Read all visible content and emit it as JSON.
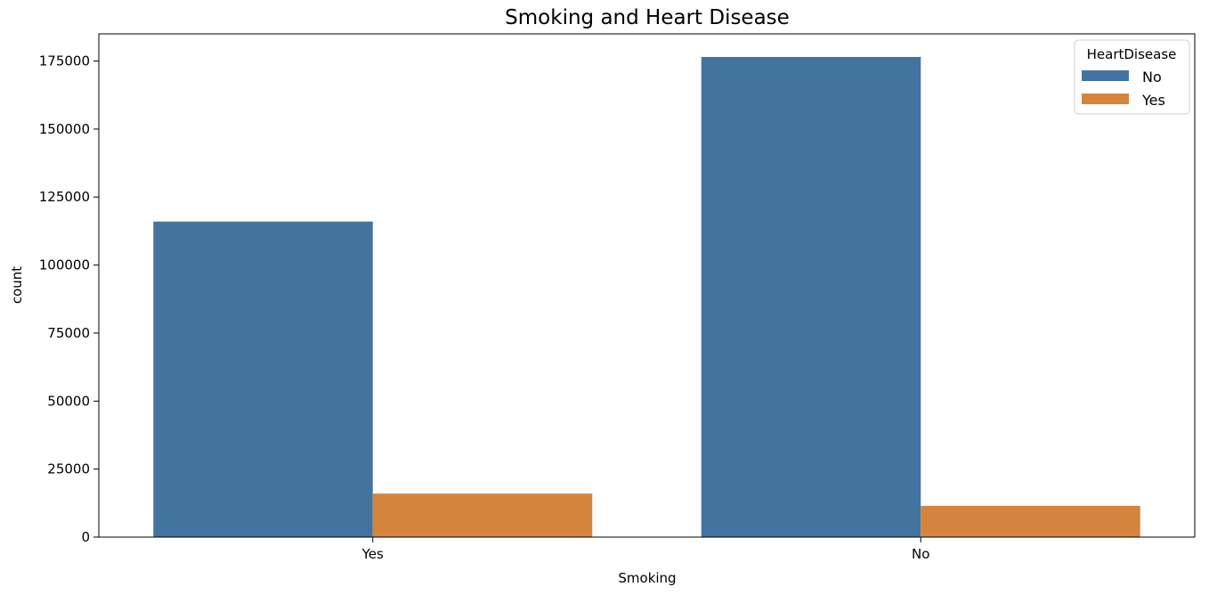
{
  "chart_data": {
    "type": "bar",
    "title": "Smoking and Heart Disease",
    "xlabel": "Smoking",
    "ylabel": "count",
    "categories": [
      "Yes",
      "No"
    ],
    "series": [
      {
        "name": "No",
        "color": "#4374a0",
        "values": [
          116000,
          176500
        ]
      },
      {
        "name": "Yes",
        "color": "#d5843e",
        "values": [
          16000,
          11500
        ]
      }
    ],
    "ylim": [
      0,
      185000
    ],
    "yticks": [
      0,
      25000,
      50000,
      75000,
      100000,
      125000,
      150000,
      175000
    ],
    "grid": false,
    "legend": {
      "title": "HeartDisease",
      "placement": "top-right"
    }
  }
}
